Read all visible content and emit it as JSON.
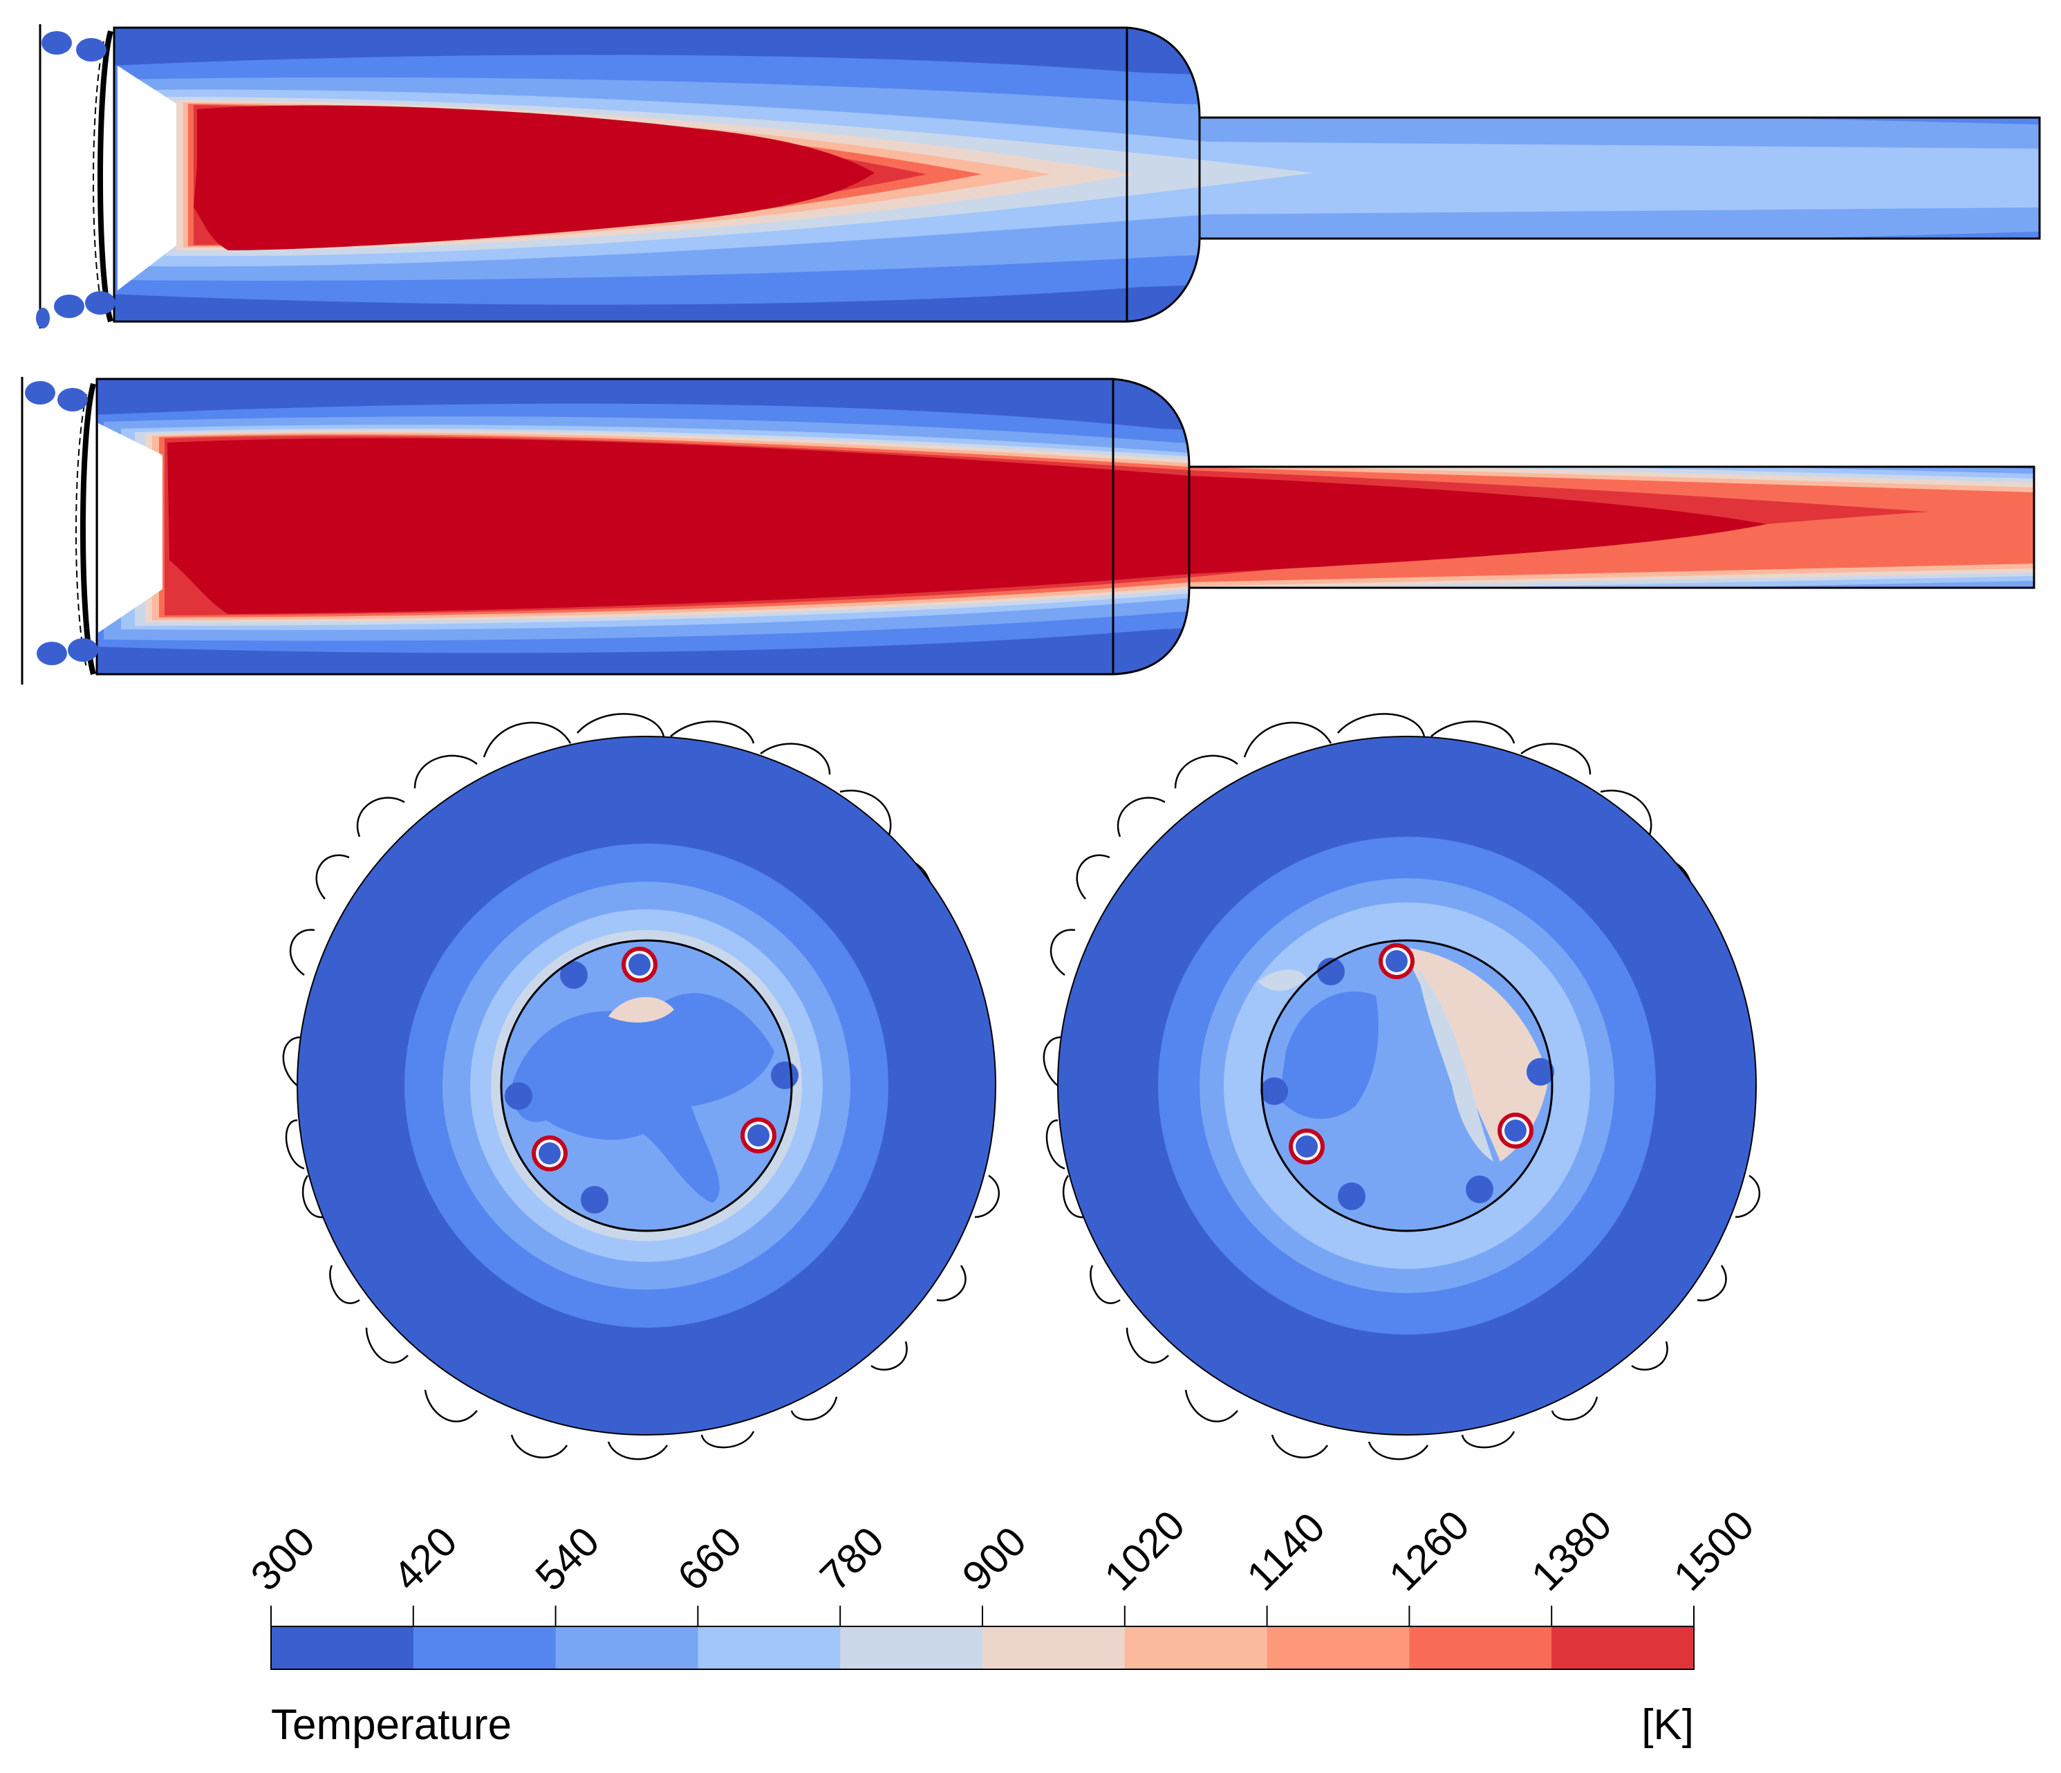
{
  "colorbar": {
    "title": "Temperature",
    "unit": "[K]",
    "ticks": [
      "300",
      "420",
      "540",
      "660",
      "780",
      "900",
      "1020",
      "1140",
      "1260",
      "1380",
      "1500"
    ],
    "colors": [
      "#3a60d0",
      "#5585ee",
      "#78a6f5",
      "#a2c5fa",
      "#cbd8ea",
      "#ecd6cc",
      "#fbb99d",
      "#fd987a",
      "#f86c55",
      "#e0343a"
    ]
  },
  "palette": {
    "cold": "#3a60d0",
    "hot": "#c5001c",
    "outline": "#000000"
  }
}
